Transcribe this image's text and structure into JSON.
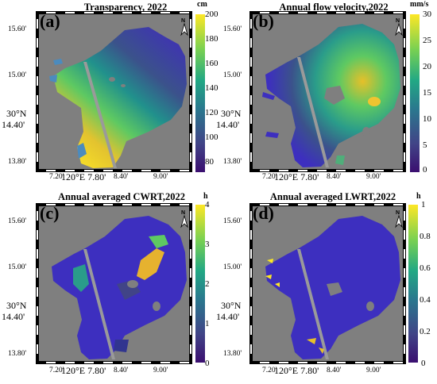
{
  "colors": {
    "background_land": "#7f7f7f",
    "colormap": [
      "#3b0f70",
      "#414487",
      "#2a788e",
      "#22a884",
      "#7ad151",
      "#fde725"
    ]
  },
  "north_arrow": {
    "label": "N",
    "icon": "north-arrow-icon"
  },
  "axes": {
    "lat_ticks": [
      "15.60'",
      "15.00'",
      "30°N",
      "14.40'",
      "13.80'"
    ],
    "lon_ticks": [
      "7.20'",
      "120°E 7.80'",
      "8.40'",
      "9.00'"
    ]
  },
  "panels": [
    {
      "letter": "(a)",
      "title": "Transparency, 2022",
      "unit": "cm",
      "colorbar_ticks": [
        "200",
        "180",
        "160",
        "140",
        "120",
        "100",
        "80"
      ],
      "range": [
        70,
        200
      ]
    },
    {
      "letter": "(b)",
      "title": "Annual flow velocity,2022",
      "unit": "mm/s",
      "colorbar_ticks": [
        "30",
        "25",
        "20",
        "15",
        "10",
        "5",
        "0"
      ],
      "range": [
        0,
        30
      ]
    },
    {
      "letter": "(c)",
      "title": "Annual averaged CWRT,2022",
      "unit": "h",
      "colorbar_ticks": [
        "4",
        "3",
        "2",
        "1",
        "0"
      ],
      "range": [
        0,
        4
      ]
    },
    {
      "letter": "(d)",
      "title": "Annual averaged LWRT,2022",
      "unit": "h",
      "colorbar_ticks": [
        "1",
        "0.8",
        "0.6",
        "0.4",
        "0.2",
        "0"
      ],
      "range": [
        0,
        1
      ]
    }
  ]
}
